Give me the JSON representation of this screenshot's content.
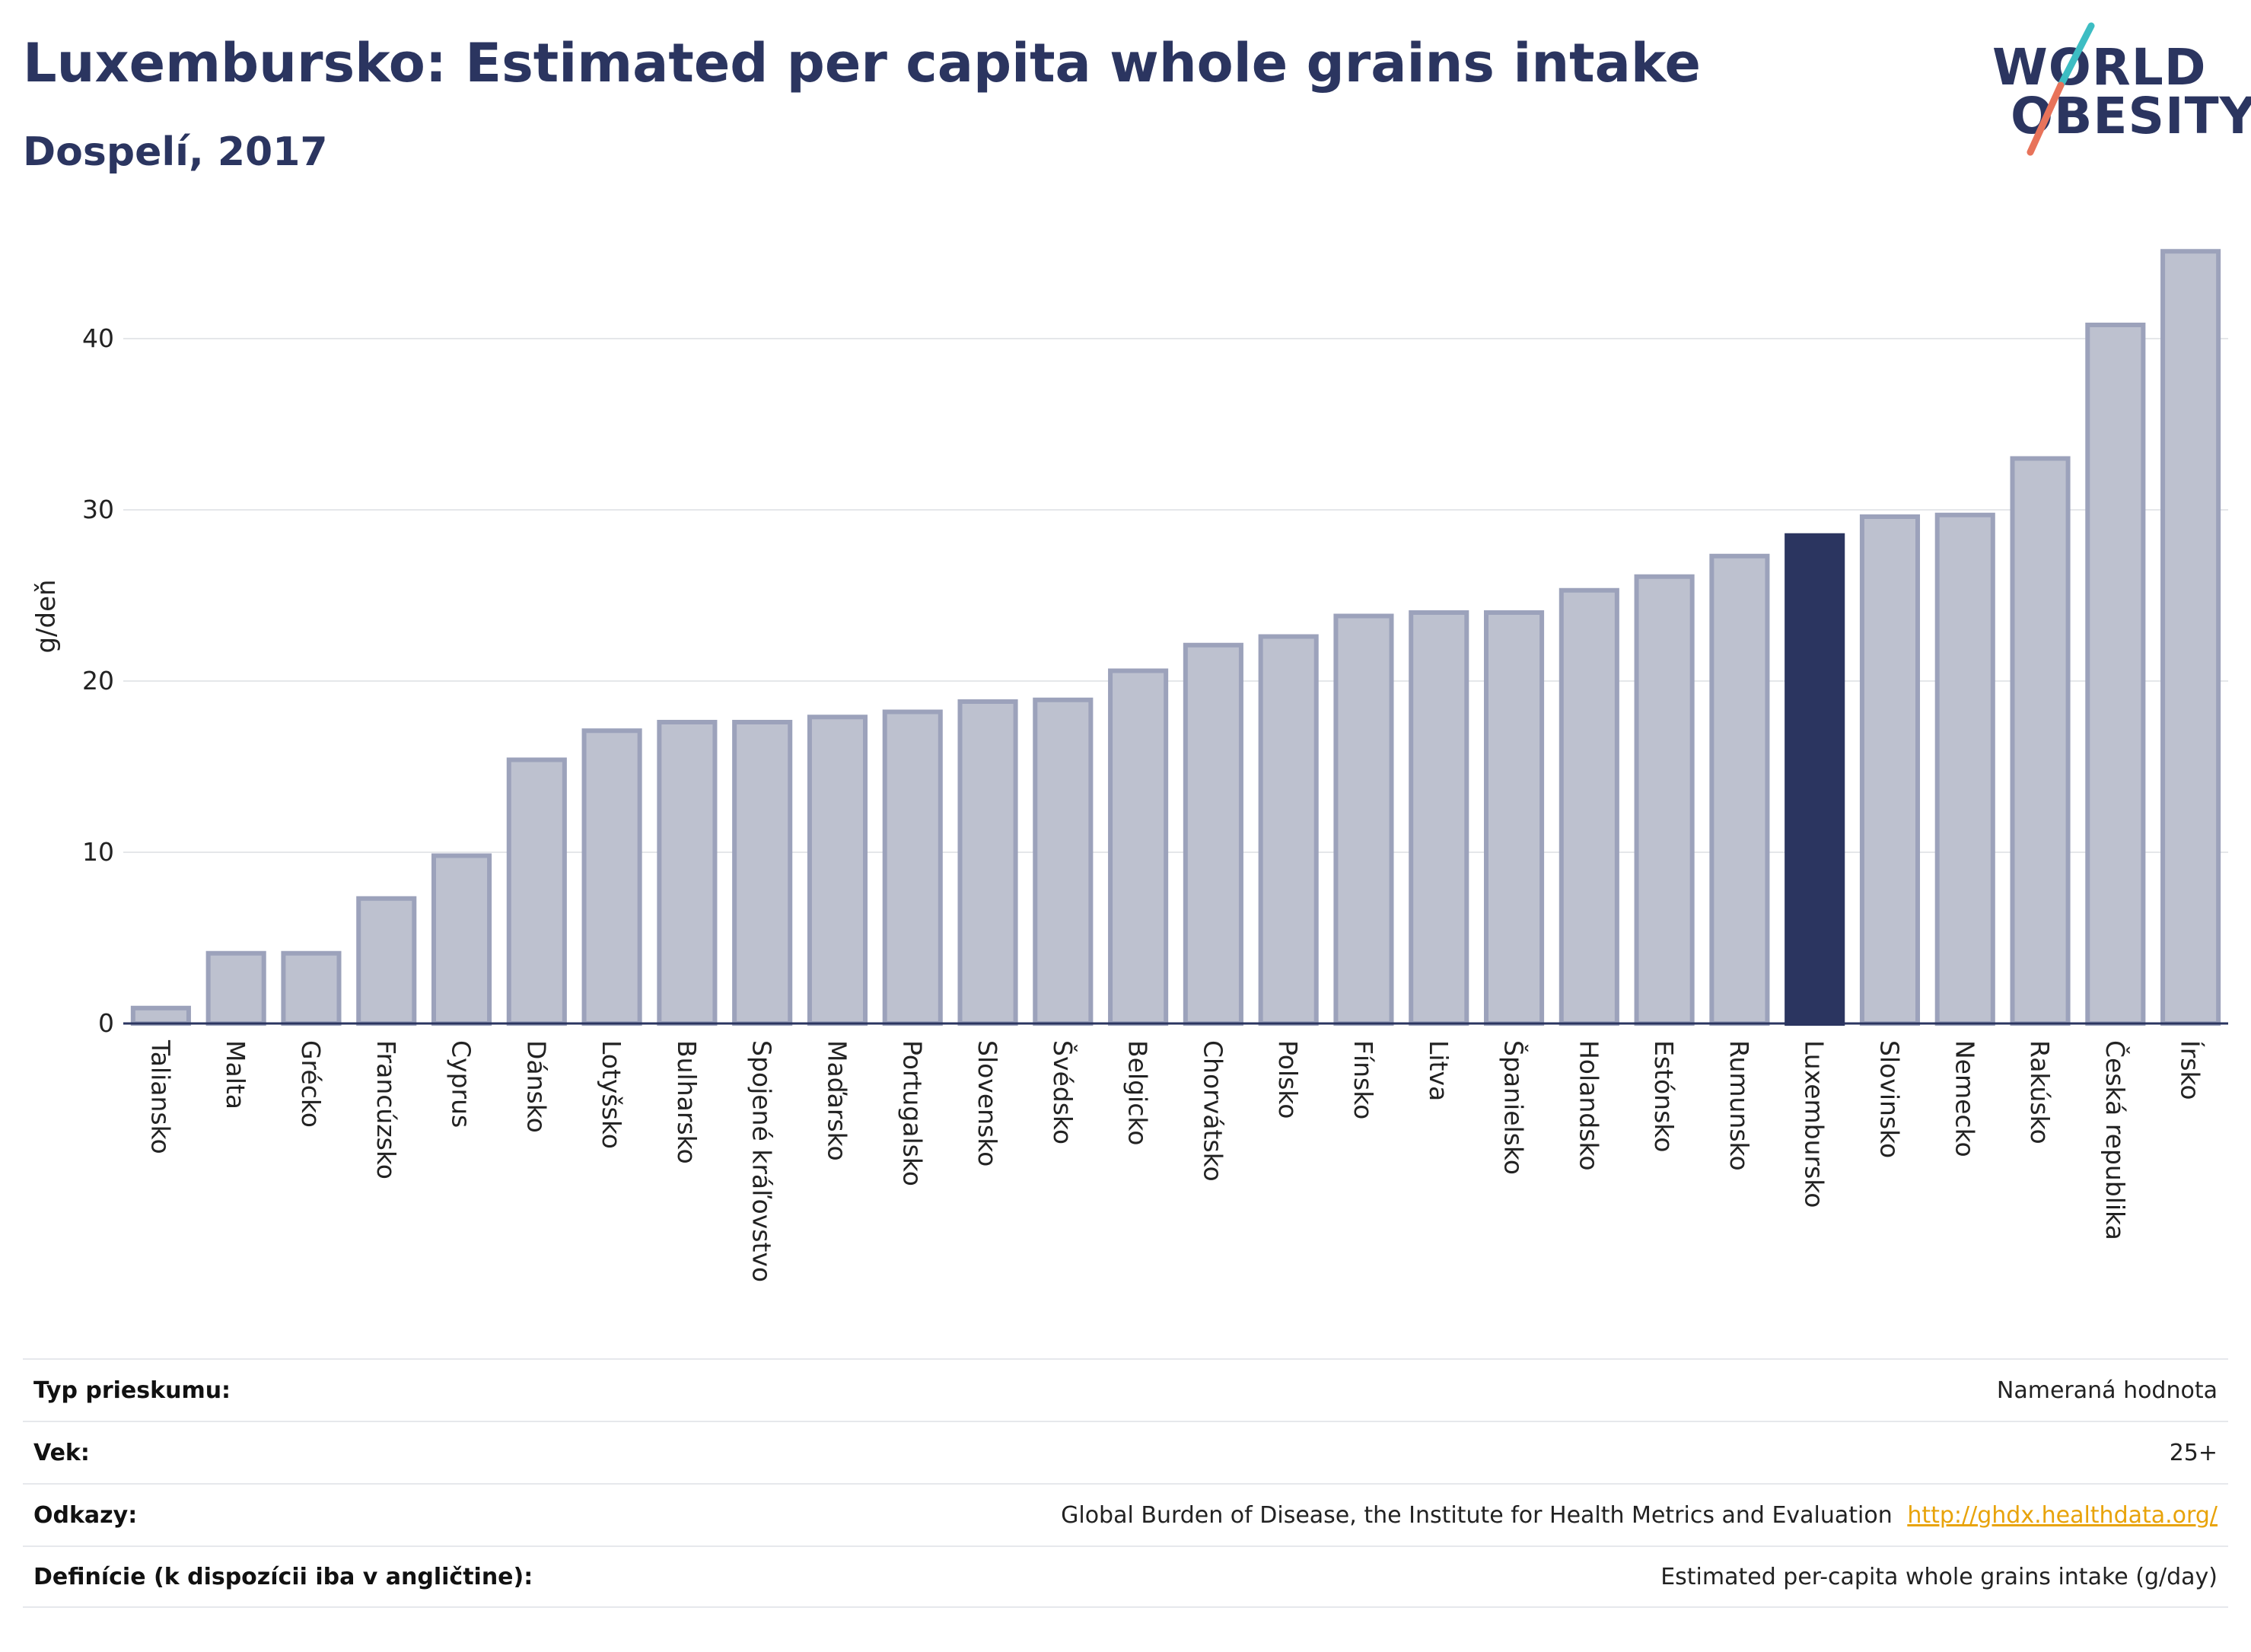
{
  "header": {
    "title": "Luxembursko: Estimated per capita whole grains intake",
    "subtitle": "Dospelí, 2017"
  },
  "logo": {
    "line1": "WORLD",
    "line2": "OBESITY",
    "accent_teal": "#3dbdc3",
    "accent_coral": "#e8735a"
  },
  "chart_data": {
    "type": "bar",
    "title": "Luxembursko: Estimated per capita whole grains intake",
    "subtitle": "Dospelí, 2017",
    "ylabel": "g/deň",
    "xlabel": "",
    "ylim": [
      0,
      46
    ],
    "yticks": [
      0,
      10,
      20,
      30,
      40
    ],
    "grid": true,
    "highlight": "Luxembursko",
    "colors": {
      "bar": "#bdc1cf",
      "bar_edge": "#9ca2bb",
      "highlight": "#2b3560",
      "grid": "#e5e7ea",
      "axis": "#2b3560"
    },
    "categories": [
      "Taliansko",
      "Malta",
      "Grécko",
      "Francúzsko",
      "Cyprus",
      "Dánsko",
      "Lotyšsko",
      "Bulharsko",
      "Spojené kráľovstvo",
      "Maďarsko",
      "Portugalsko",
      "Slovensko",
      "Švédsko",
      "Belgicko",
      "Chorvátsko",
      "Polsko",
      "Fínsko",
      "Litva",
      "Španielsko",
      "Holandsko",
      "Estónsko",
      "Rumunsko",
      "Luxembursko",
      "Slovinsko",
      "Nemecko",
      "Rakúsko",
      "Česká republika",
      "Írsko"
    ],
    "values": [
      0.9,
      4.1,
      4.1,
      7.3,
      9.8,
      15.4,
      17.1,
      17.6,
      17.6,
      17.9,
      18.2,
      18.8,
      18.9,
      20.6,
      22.1,
      22.6,
      23.8,
      24.0,
      24.0,
      25.3,
      26.1,
      27.3,
      28.5,
      29.6,
      29.7,
      33.0,
      40.8,
      45.1
    ]
  },
  "footer": {
    "rows": [
      {
        "label": "Typ prieskumu:",
        "value": "Nameraná hodnota",
        "link": ""
      },
      {
        "label": "Vek:",
        "value": "25+",
        "link": ""
      },
      {
        "label": "Odkazy:",
        "value": "Global Burden of Disease, the Institute for Health Metrics and Evaluation",
        "link": "http://ghdx.healthdata.org/"
      },
      {
        "label": "Definície (k dispozícii iba v angličtine):",
        "value": "Estimated per-capita whole grains intake (g/day)",
        "link": ""
      }
    ]
  }
}
